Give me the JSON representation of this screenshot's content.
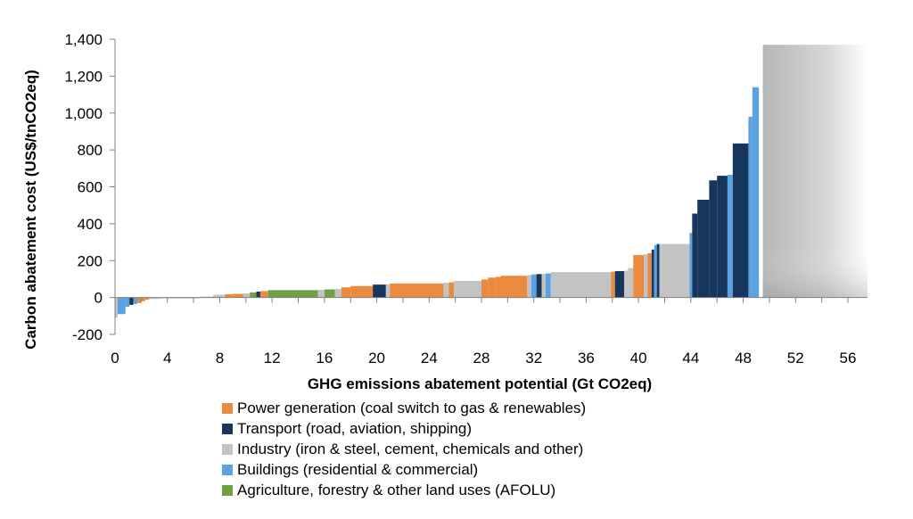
{
  "chart_data": {
    "type": "bar",
    "subtype": "marginal abatement cost curve (variable-width bars)",
    "xlabel": "GHG emissions abatement potential  (Gt CO2eq)",
    "ylabel": "Carbon abatement cost (US$/tnCO2eq)",
    "xlim": [
      0,
      57.5
    ],
    "ylim": [
      -200,
      1400
    ],
    "x_ticks": [
      0,
      4,
      8,
      12,
      16,
      20,
      24,
      28,
      32,
      36,
      40,
      44,
      48,
      52,
      56
    ],
    "y_ticks": [
      -200,
      0,
      200,
      400,
      600,
      800,
      1000,
      1200,
      1400
    ],
    "y_tick_labels": [
      "-200",
      "0",
      "200",
      "400",
      "600",
      "800",
      "1,000",
      "1,200",
      "1,400"
    ],
    "grid": false,
    "legend_position": "bottom",
    "shaded_region": {
      "x": [
        49.5,
        57.5
      ],
      "y_max": 1370,
      "note": "unlabeled grey gradient block"
    },
    "categories": [
      {
        "key": "power",
        "label": "Power generation (coal switch to gas & renewables)",
        "color": "#E98A3F"
      },
      {
        "key": "transport",
        "label": "Transport (road, aviation, shipping)",
        "color": "#17365D"
      },
      {
        "key": "industry",
        "label": "Industry (iron & steel, cement, chemicals and other)",
        "color": "#C3C3C3"
      },
      {
        "key": "buildings",
        "label": "Buildings (residential & commercial)",
        "color": "#5BA3E0"
      },
      {
        "key": "afolu",
        "label": "Agriculture, forestry & other land uses (AFOLU)",
        "color": "#70A040"
      }
    ],
    "bars": [
      {
        "x0": 0.0,
        "x1": 0.2,
        "y": -110,
        "cat": "industry"
      },
      {
        "x0": 0.2,
        "x1": 0.8,
        "y": -90,
        "cat": "buildings"
      },
      {
        "x0": 0.8,
        "x1": 1.1,
        "y": -50,
        "cat": "buildings"
      },
      {
        "x0": 1.1,
        "x1": 1.4,
        "y": -40,
        "cat": "transport"
      },
      {
        "x0": 1.4,
        "x1": 1.7,
        "y": -35,
        "cat": "buildings"
      },
      {
        "x0": 1.7,
        "x1": 2.0,
        "y": -30,
        "cat": "power"
      },
      {
        "x0": 2.0,
        "x1": 2.3,
        "y": -20,
        "cat": "power"
      },
      {
        "x0": 2.3,
        "x1": 2.6,
        "y": -12,
        "cat": "power"
      },
      {
        "x0": 2.6,
        "x1": 3.5,
        "y": -8,
        "cat": "industry"
      },
      {
        "x0": 3.5,
        "x1": 6.5,
        "y": -5,
        "cat": "industry"
      },
      {
        "x0": 6.5,
        "x1": 7.5,
        "y": 5,
        "cat": "industry"
      },
      {
        "x0": 7.5,
        "x1": 8.4,
        "y": 15,
        "cat": "industry"
      },
      {
        "x0": 8.4,
        "x1": 9.0,
        "y": 18,
        "cat": "power"
      },
      {
        "x0": 9.0,
        "x1": 9.8,
        "y": 20,
        "cat": "power"
      },
      {
        "x0": 9.8,
        "x1": 10.3,
        "y": 22,
        "cat": "industry"
      },
      {
        "x0": 10.3,
        "x1": 10.8,
        "y": 28,
        "cat": "afolu"
      },
      {
        "x0": 10.8,
        "x1": 11.1,
        "y": 32,
        "cat": "transport"
      },
      {
        "x0": 11.1,
        "x1": 11.7,
        "y": 35,
        "cat": "power"
      },
      {
        "x0": 11.7,
        "x1": 15.5,
        "y": 40,
        "cat": "afolu"
      },
      {
        "x0": 15.5,
        "x1": 16.0,
        "y": 42,
        "cat": "industry"
      },
      {
        "x0": 16.0,
        "x1": 16.8,
        "y": 44,
        "cat": "afolu"
      },
      {
        "x0": 16.8,
        "x1": 17.3,
        "y": 46,
        "cat": "industry"
      },
      {
        "x0": 17.3,
        "x1": 18.0,
        "y": 55,
        "cat": "power"
      },
      {
        "x0": 18.0,
        "x1": 19.7,
        "y": 62,
        "cat": "power"
      },
      {
        "x0": 19.7,
        "x1": 20.7,
        "y": 70,
        "cat": "transport"
      },
      {
        "x0": 20.7,
        "x1": 21.0,
        "y": 72,
        "cat": "industry"
      },
      {
        "x0": 21.0,
        "x1": 25.1,
        "y": 76,
        "cat": "power"
      },
      {
        "x0": 25.1,
        "x1": 25.5,
        "y": 80,
        "cat": "industry"
      },
      {
        "x0": 25.5,
        "x1": 25.9,
        "y": 82,
        "cat": "power"
      },
      {
        "x0": 25.9,
        "x1": 28.0,
        "y": 90,
        "cat": "industry"
      },
      {
        "x0": 28.0,
        "x1": 28.5,
        "y": 98,
        "cat": "power"
      },
      {
        "x0": 28.5,
        "x1": 29.1,
        "y": 108,
        "cat": "power"
      },
      {
        "x0": 29.1,
        "x1": 29.5,
        "y": 112,
        "cat": "power"
      },
      {
        "x0": 29.5,
        "x1": 31.5,
        "y": 118,
        "cat": "power"
      },
      {
        "x0": 31.5,
        "x1": 31.8,
        "y": 122,
        "cat": "industry"
      },
      {
        "x0": 31.8,
        "x1": 32.2,
        "y": 125,
        "cat": "buildings"
      },
      {
        "x0": 32.2,
        "x1": 32.6,
        "y": 127,
        "cat": "transport"
      },
      {
        "x0": 32.6,
        "x1": 32.9,
        "y": 128,
        "cat": "industry"
      },
      {
        "x0": 32.9,
        "x1": 33.3,
        "y": 130,
        "cat": "buildings"
      },
      {
        "x0": 33.3,
        "x1": 37.9,
        "y": 138,
        "cat": "industry"
      },
      {
        "x0": 37.9,
        "x1": 38.2,
        "y": 140,
        "cat": "power"
      },
      {
        "x0": 38.2,
        "x1": 38.9,
        "y": 143,
        "cat": "transport"
      },
      {
        "x0": 38.9,
        "x1": 39.2,
        "y": 145,
        "cat": "industry"
      },
      {
        "x0": 39.2,
        "x1": 39.6,
        "y": 160,
        "cat": "industry"
      },
      {
        "x0": 39.6,
        "x1": 40.4,
        "y": 230,
        "cat": "power"
      },
      {
        "x0": 40.4,
        "x1": 40.7,
        "y": 235,
        "cat": "industry"
      },
      {
        "x0": 40.7,
        "x1": 41.0,
        "y": 240,
        "cat": "power"
      },
      {
        "x0": 41.0,
        "x1": 41.2,
        "y": 260,
        "cat": "transport"
      },
      {
        "x0": 41.2,
        "x1": 41.4,
        "y": 285,
        "cat": "buildings"
      },
      {
        "x0": 41.4,
        "x1": 41.6,
        "y": 290,
        "cat": "transport"
      },
      {
        "x0": 41.6,
        "x1": 43.9,
        "y": 290,
        "cat": "industry"
      },
      {
        "x0": 43.9,
        "x1": 44.1,
        "y": 350,
        "cat": "buildings"
      },
      {
        "x0": 44.1,
        "x1": 44.5,
        "y": 455,
        "cat": "transport"
      },
      {
        "x0": 44.5,
        "x1": 45.4,
        "y": 530,
        "cat": "transport"
      },
      {
        "x0": 45.4,
        "x1": 46.0,
        "y": 635,
        "cat": "transport"
      },
      {
        "x0": 46.0,
        "x1": 46.8,
        "y": 660,
        "cat": "transport"
      },
      {
        "x0": 46.8,
        "x1": 47.2,
        "y": 665,
        "cat": "buildings"
      },
      {
        "x0": 47.2,
        "x1": 48.4,
        "y": 835,
        "cat": "transport"
      },
      {
        "x0": 48.4,
        "x1": 48.7,
        "y": 980,
        "cat": "buildings"
      },
      {
        "x0": 48.7,
        "x1": 49.2,
        "y": 1140,
        "cat": "buildings"
      }
    ]
  }
}
